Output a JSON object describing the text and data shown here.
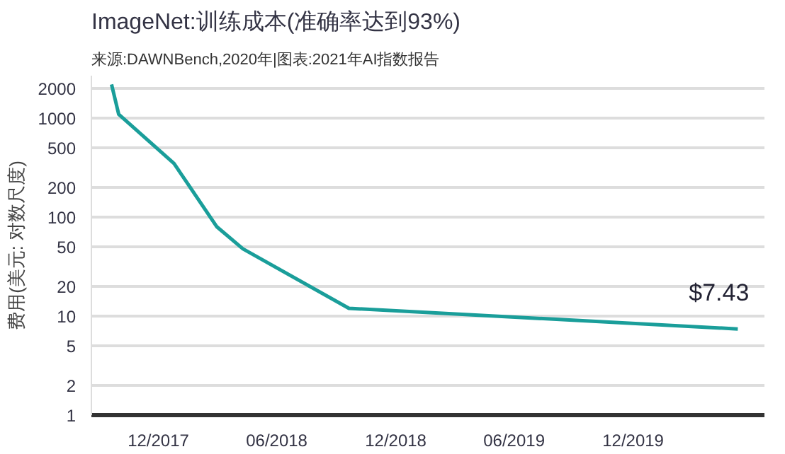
{
  "chart_data": {
    "type": "line",
    "title": "ImageNet:训练成本(准确率达到93%)",
    "subtitle": "来源:DAWNBench,2020年|图表:2021年AI指数报告",
    "ylabel": "费用(美元: 对数尺度)",
    "x": [
      "2017-09-20",
      "2017-10-01",
      "2017-12-25",
      "2018-03-01",
      "2018-04-10",
      "2018-09-20",
      "2020-05-10"
    ],
    "series": [
      {
        "color": "#1a9e9a",
        "values": [
          2200,
          1100,
          350,
          80,
          48,
          12,
          7.43
        ]
      }
    ],
    "annotations": [
      {
        "text": "$7.43",
        "x": "2020-05-10",
        "y": 7.43
      }
    ],
    "log": "y",
    "grid": "y",
    "marker": "none",
    "line_style": "solid",
    "xlim": [
      "2017-08-20",
      "2020-06-20"
    ],
    "xticks": [
      {
        "value": "2017-12",
        "label": "12/2017"
      },
      {
        "value": "2018-06",
        "label": "06/2018"
      },
      {
        "value": "2018-12",
        "label": "12/2018"
      },
      {
        "value": "2019-06",
        "label": "06/2019"
      },
      {
        "value": "2019-12",
        "label": "12/2019"
      }
    ],
    "ylim": [
      1,
      2700
    ],
    "yticks": [
      1,
      2,
      5,
      10,
      20,
      50,
      100,
      200,
      500,
      1000,
      2000
    ]
  }
}
